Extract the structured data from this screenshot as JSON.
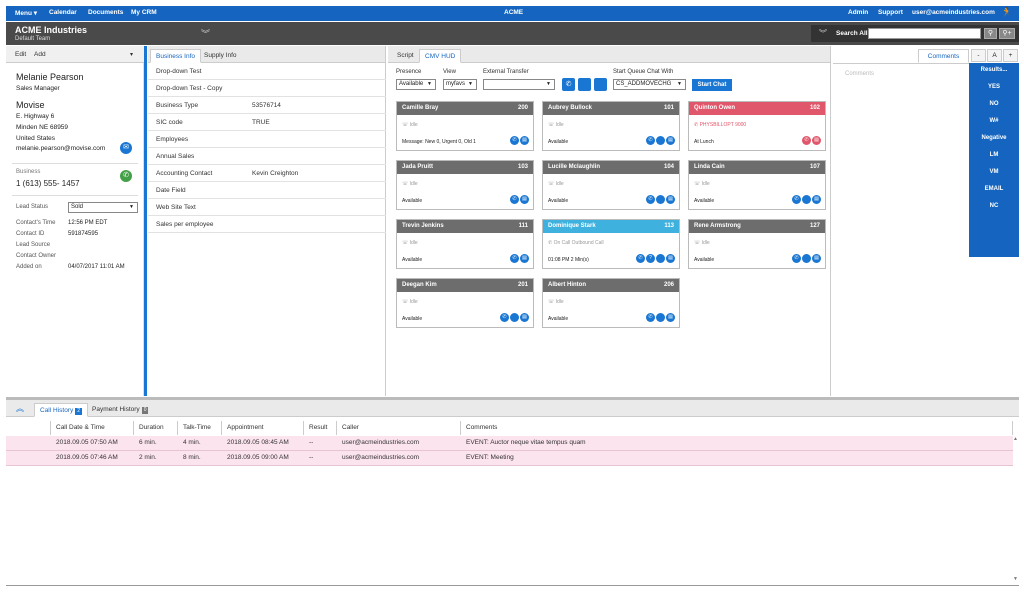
{
  "topbar": {
    "menu": "Menu",
    "calendar": "Calendar",
    "documents": "Documents",
    "mycrm": "My CRM",
    "app_title": "ACME",
    "admin": "Admin",
    "support": "Support",
    "user_email": "user@acmeindustries.com"
  },
  "header": {
    "company": "ACME Industries",
    "team": "Default Team",
    "search_label": "Search All",
    "search_value": ""
  },
  "contact": {
    "edit": "Edit",
    "add": "Add",
    "name": "Melanie Pearson",
    "title": "Sales Manager",
    "company": "Movise",
    "street": "E. Highway 6",
    "city_line": "Minden  NE  68959",
    "country": "United States",
    "email": "melanie.pearson@movise.com",
    "phone_label": "Business",
    "phone": "1 (613) 555- 1457",
    "lead_status_label": "Lead Status",
    "lead_status": "Sold",
    "fields": [
      {
        "label": "Contact's Time",
        "value": "12:56 PM EDT"
      },
      {
        "label": "Contact ID",
        "value": "591874595"
      },
      {
        "label": "Lead Source",
        "value": ""
      },
      {
        "label": "Contact Owner",
        "value": ""
      },
      {
        "label": "Added on",
        "value": "04/07/2017 11:01 AM"
      }
    ]
  },
  "business": {
    "tabs": [
      "Business Info",
      "Supply Info"
    ],
    "rows": [
      {
        "label": "Drop-down Test",
        "value": ""
      },
      {
        "label": "Drop-down Test - Copy",
        "value": ""
      },
      {
        "label": "Business Type",
        "value": "53576714"
      },
      {
        "label": "SIC code",
        "value": "TRUE"
      },
      {
        "label": "Employees",
        "value": ""
      },
      {
        "label": "Annual Sales",
        "value": ""
      },
      {
        "label": "Accounting Contact",
        "value": "Kevin Creighton"
      },
      {
        "label": "Date Field",
        "value": ""
      },
      {
        "label": "Web Site Text",
        "value": ""
      },
      {
        "label": "Sales per employee",
        "value": ""
      }
    ]
  },
  "hud": {
    "tabs": [
      "Script",
      "CMV HUD"
    ],
    "presence_label": "Presence",
    "presence_value": "Available",
    "view_label": "View",
    "view_value": "myfavs",
    "transfer_label": "External Transfer",
    "transfer_value": "",
    "queue_label": "Start Queue Chat With",
    "queue_value": "CS_ADDMOVECHG",
    "start_chat": "Start Chat",
    "agents": [
      {
        "name": "Camille Bray",
        "ext": "200",
        "line2": "Idle",
        "status": "Message: New 0, Urgent 0, Old 1",
        "color": "#6d6d6d",
        "icons": [
          "phone",
          "chat"
        ]
      },
      {
        "name": "Aubrey Bullock",
        "ext": "101",
        "line2": "Idle",
        "status": "Available",
        "color": "#6d6d6d",
        "icons": [
          "phone",
          "person",
          "chat"
        ]
      },
      {
        "name": "Quinton Owen",
        "ext": "102",
        "line2": "PHYSBILLOPT 9000",
        "status": "At Lunch",
        "color": "#e0566a",
        "icons": [
          "phone",
          "chat"
        ]
      },
      {
        "name": "Jada Pruitt",
        "ext": "103",
        "line2": "Idle",
        "status": "Available",
        "color": "#6d6d6d",
        "icons": [
          "phone",
          "chat"
        ]
      },
      {
        "name": "Lucille Mclaughlin",
        "ext": "104",
        "line2": "Idle",
        "status": "Available",
        "color": "#6d6d6d",
        "icons": [
          "phone",
          "person",
          "chat"
        ]
      },
      {
        "name": "Linda Cain",
        "ext": "107",
        "line2": "Idle",
        "status": "Available",
        "color": "#6d6d6d",
        "icons": [
          "phone",
          "person",
          "chat"
        ]
      },
      {
        "name": "Trevin Jenkins",
        "ext": "111",
        "line2": "Idle",
        "status": "Available",
        "color": "#6d6d6d",
        "icons": [
          "phone",
          "chat"
        ]
      },
      {
        "name": "Dominique Stark",
        "ext": "113",
        "line2": "On Call Outbound Call",
        "status": "01:08 PM 2 Min(s)",
        "color": "#3fb1de",
        "icons": [
          "phone",
          "help",
          "person",
          "chat"
        ]
      },
      {
        "name": "Rene Armstrong",
        "ext": "127",
        "line2": "Idle",
        "status": "Available",
        "color": "#6d6d6d",
        "icons": [
          "phone",
          "person",
          "chat"
        ]
      },
      {
        "name": "Deegan Kim",
        "ext": "201",
        "line2": "Idle",
        "status": "Available",
        "color": "#6d6d6d",
        "icons": [
          "phone",
          "person",
          "chat"
        ]
      },
      {
        "name": "Albert Hinton",
        "ext": "206",
        "line2": "Idle",
        "status": "Available",
        "color": "#6d6d6d",
        "icons": [
          "phone",
          "person",
          "chat"
        ]
      }
    ]
  },
  "comments": {
    "tab": "Comments",
    "placeholder": "Comments"
  },
  "results": {
    "font_controls": [
      "-",
      "A",
      "+"
    ],
    "items": [
      "Results...",
      "YES",
      "NO",
      "W#",
      "Negative",
      "LM",
      "VM",
      "EMAIL",
      "NC"
    ]
  },
  "history": {
    "tabs": [
      {
        "label": "Call History",
        "badge": "2"
      },
      {
        "label": "Payment History",
        "badge": "0"
      }
    ],
    "columns": [
      "Call Date & Time",
      "Duration",
      "Talk-Time",
      "Appointment",
      "Result",
      "Caller",
      "Comments"
    ],
    "rows": [
      [
        "2018.09.05 07:50 AM",
        "6 min.",
        "4 min.",
        "2018.09.05 08:45 AM",
        "--",
        "user@acmeindustries.com",
        "EVENT: Auctor neque vitae tempus quam"
      ],
      [
        "2018.09.05 07:46 AM",
        "2 min.",
        "8 min.",
        "2018.09.05 09:00 AM",
        "--",
        "user@acmeindustries.com",
        "EVENT: Meeting"
      ]
    ]
  },
  "colors": {
    "brand_blue": "#1565c0",
    "accent_blue": "#1976d2",
    "header_gray": "#4a4a4a",
    "agent_busy": "#e0566a",
    "agent_oncall": "#3fb1de",
    "history_row": "#fce4ef"
  }
}
